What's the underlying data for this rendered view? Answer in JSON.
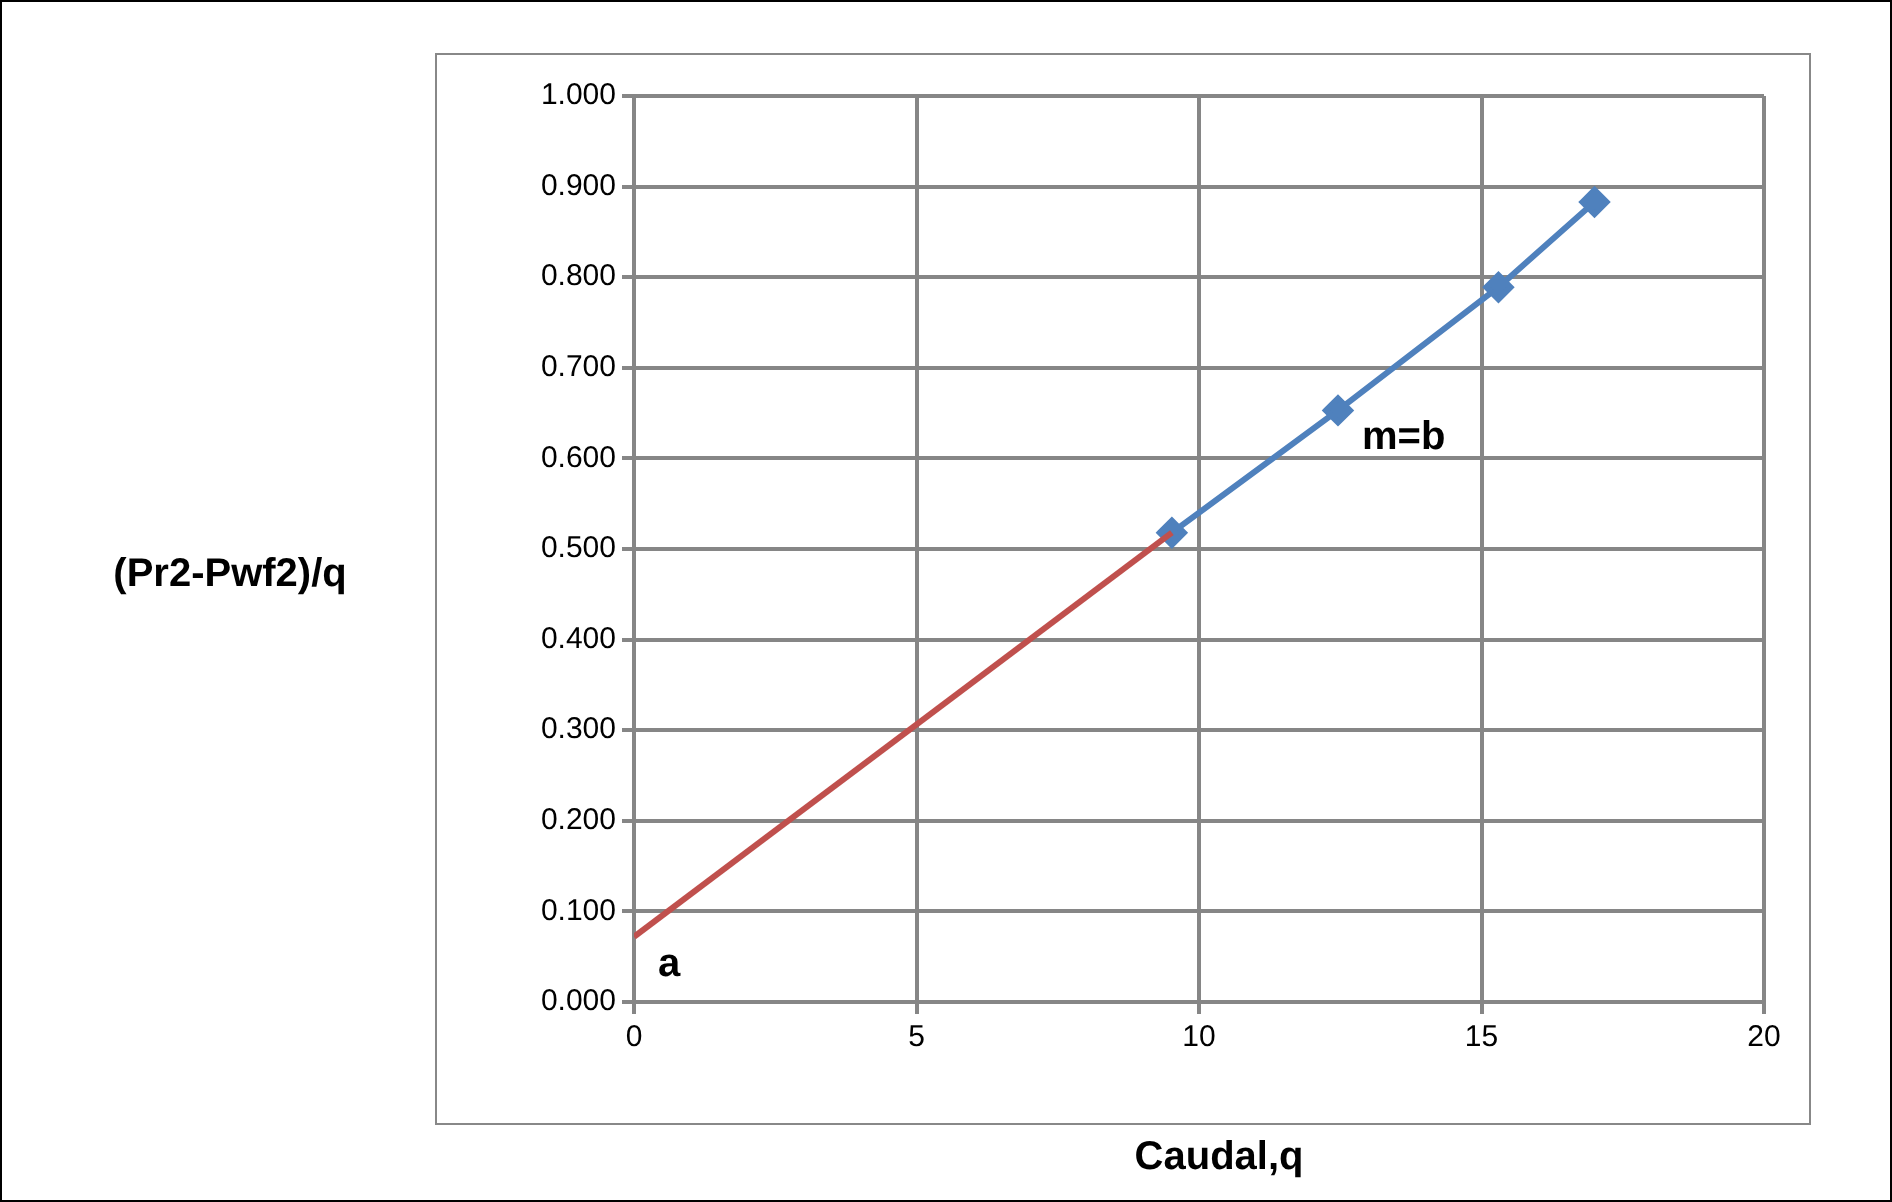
{
  "chart_data": {
    "type": "line",
    "xlabel": "Caudal,q",
    "ylabel": "(Pr2-Pwf2)/q",
    "xlim": [
      0,
      20
    ],
    "xticks": [
      0,
      5,
      10,
      15,
      20
    ],
    "ylim": [
      0,
      1
    ],
    "yticks": [
      {
        "value": 0,
        "label": "0.000"
      },
      {
        "value": 0.1,
        "label": "0.100"
      },
      {
        "value": 0.2,
        "label": "0.200"
      },
      {
        "value": 0.3,
        "label": "0.300"
      },
      {
        "value": 0.4,
        "label": "0.400"
      },
      {
        "value": 0.5,
        "label": "0.500"
      },
      {
        "value": 0.6,
        "label": "0.600"
      },
      {
        "value": 0.7,
        "label": "0.700"
      },
      {
        "value": 0.8,
        "label": "0.800"
      },
      {
        "value": 0.9,
        "label": "0.900"
      },
      {
        "value": 1,
        "label": "1.000"
      }
    ],
    "grid": true,
    "legend": false,
    "series": [
      {
        "color": "#4f81bd",
        "marker": "diamond",
        "x": [
          9.52,
          12.46,
          15.3,
          17.0
        ],
        "values": [
          0.518,
          0.653,
          0.789,
          0.883
        ]
      },
      {
        "color": "#c0504d",
        "marker": "none",
        "x": [
          0,
          9.52
        ],
        "values": [
          0.072,
          0.518
        ]
      }
    ],
    "annotations": [
      {
        "text": "a",
        "x": 0,
        "y": 0.072
      },
      {
        "text": "m=b",
        "x": 12.46,
        "y": 0.653
      }
    ]
  }
}
